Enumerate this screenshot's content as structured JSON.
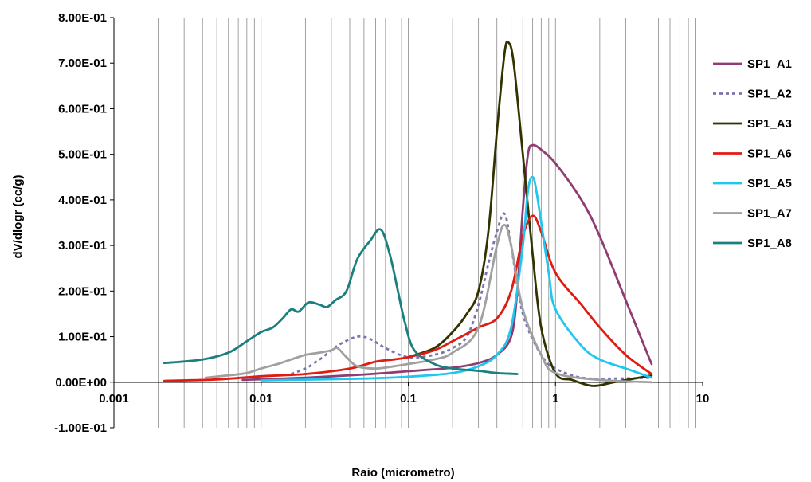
{
  "chart_data": {
    "type": "line",
    "title": "",
    "xlabel": "Raio (micrometro)",
    "ylabel": "dV/dlogr (cc/g)",
    "xscale": "log",
    "xlim": [
      0.001,
      10
    ],
    "ylim": [
      -0.1,
      0.8
    ],
    "x_ticks": [
      "0.001",
      "0.01",
      "0.1",
      "1",
      "10"
    ],
    "y_ticks": [
      "-1.00E-01",
      "0.00E+00",
      "1.00E-01",
      "2.00E-01",
      "3.00E-01",
      "4.00E-01",
      "5.00E-01",
      "6.00E-01",
      "7.00E-01",
      "8.00E-01"
    ],
    "grid": "vertical minor and major log gridlines",
    "legend_position": "right",
    "series": [
      {
        "name": "SP1_A1",
        "color": "#8E3C72",
        "dash": "solid",
        "points": [
          [
            0.0075,
            0.005
          ],
          [
            0.02,
            0.01
          ],
          [
            0.05,
            0.017
          ],
          [
            0.1,
            0.024
          ],
          [
            0.2,
            0.032
          ],
          [
            0.3,
            0.042
          ],
          [
            0.4,
            0.06
          ],
          [
            0.5,
            0.1
          ],
          [
            0.55,
            0.2
          ],
          [
            0.6,
            0.38
          ],
          [
            0.65,
            0.5
          ],
          [
            0.7,
            0.52
          ],
          [
            0.8,
            0.51
          ],
          [
            1.0,
            0.48
          ],
          [
            1.5,
            0.4
          ],
          [
            2.0,
            0.32
          ],
          [
            3.0,
            0.18
          ],
          [
            4.5,
            0.04
          ]
        ]
      },
      {
        "name": "SP1_A2",
        "color": "#7A73B0",
        "dash": "dashed",
        "points": [
          [
            0.016,
            0.018
          ],
          [
            0.02,
            0.03
          ],
          [
            0.025,
            0.05
          ],
          [
            0.03,
            0.07
          ],
          [
            0.035,
            0.085
          ],
          [
            0.045,
            0.1
          ],
          [
            0.055,
            0.095
          ],
          [
            0.07,
            0.075
          ],
          [
            0.1,
            0.055
          ],
          [
            0.15,
            0.06
          ],
          [
            0.2,
            0.075
          ],
          [
            0.25,
            0.1
          ],
          [
            0.3,
            0.17
          ],
          [
            0.35,
            0.26
          ],
          [
            0.4,
            0.33
          ],
          [
            0.45,
            0.37
          ],
          [
            0.5,
            0.3
          ],
          [
            0.6,
            0.15
          ],
          [
            0.8,
            0.06
          ],
          [
            1.0,
            0.03
          ],
          [
            1.5,
            0.01
          ],
          [
            2.5,
            0.008
          ],
          [
            4.5,
            0.01
          ]
        ]
      },
      {
        "name": "SP1_A3",
        "color": "#333300",
        "dash": "solid",
        "points": [
          [
            0.1,
            0.055
          ],
          [
            0.15,
            0.075
          ],
          [
            0.2,
            0.11
          ],
          [
            0.25,
            0.15
          ],
          [
            0.3,
            0.2
          ],
          [
            0.35,
            0.33
          ],
          [
            0.4,
            0.55
          ],
          [
            0.45,
            0.72
          ],
          [
            0.48,
            0.745
          ],
          [
            0.52,
            0.7
          ],
          [
            0.6,
            0.5
          ],
          [
            0.7,
            0.28
          ],
          [
            0.8,
            0.12
          ],
          [
            1.0,
            0.02
          ],
          [
            1.3,
            0.005
          ],
          [
            1.8,
            -0.008
          ],
          [
            2.5,
            0.0
          ],
          [
            4.5,
            0.015
          ]
        ]
      },
      {
        "name": "SP1_A6",
        "color": "#E01B12",
        "dash": "solid",
        "points": [
          [
            0.0022,
            0.003
          ],
          [
            0.005,
            0.006
          ],
          [
            0.01,
            0.013
          ],
          [
            0.02,
            0.018
          ],
          [
            0.04,
            0.03
          ],
          [
            0.06,
            0.045
          ],
          [
            0.08,
            0.05
          ],
          [
            0.1,
            0.055
          ],
          [
            0.15,
            0.07
          ],
          [
            0.2,
            0.09
          ],
          [
            0.3,
            0.12
          ],
          [
            0.4,
            0.14
          ],
          [
            0.5,
            0.2
          ],
          [
            0.6,
            0.32
          ],
          [
            0.7,
            0.365
          ],
          [
            0.8,
            0.33
          ],
          [
            1.0,
            0.24
          ],
          [
            1.5,
            0.17
          ],
          [
            2.0,
            0.12
          ],
          [
            3.0,
            0.06
          ],
          [
            4.5,
            0.018
          ]
        ]
      },
      {
        "name": "SP1_A5",
        "color": "#1FC6F0",
        "dash": "solid",
        "points": [
          [
            0.01,
            0.004
          ],
          [
            0.05,
            0.008
          ],
          [
            0.1,
            0.012
          ],
          [
            0.2,
            0.02
          ],
          [
            0.3,
            0.035
          ],
          [
            0.4,
            0.06
          ],
          [
            0.5,
            0.12
          ],
          [
            0.6,
            0.3
          ],
          [
            0.65,
            0.42
          ],
          [
            0.7,
            0.45
          ],
          [
            0.75,
            0.41
          ],
          [
            0.9,
            0.24
          ],
          [
            1.0,
            0.16
          ],
          [
            1.5,
            0.08
          ],
          [
            2.0,
            0.05
          ],
          [
            3.0,
            0.03
          ],
          [
            4.5,
            0.01
          ]
        ]
      },
      {
        "name": "SP1_A7",
        "color": "#A0A0A0",
        "dash": "solid",
        "points": [
          [
            0.0042,
            0.01
          ],
          [
            0.006,
            0.015
          ],
          [
            0.008,
            0.02
          ],
          [
            0.01,
            0.03
          ],
          [
            0.013,
            0.04
          ],
          [
            0.016,
            0.05
          ],
          [
            0.02,
            0.06
          ],
          [
            0.025,
            0.065
          ],
          [
            0.03,
            0.07
          ],
          [
            0.033,
            0.075
          ],
          [
            0.038,
            0.055
          ],
          [
            0.045,
            0.035
          ],
          [
            0.06,
            0.03
          ],
          [
            0.08,
            0.035
          ],
          [
            0.1,
            0.04
          ],
          [
            0.15,
            0.05
          ],
          [
            0.2,
            0.065
          ],
          [
            0.3,
            0.12
          ],
          [
            0.4,
            0.3
          ],
          [
            0.45,
            0.345
          ],
          [
            0.5,
            0.3
          ],
          [
            0.6,
            0.16
          ],
          [
            0.8,
            0.06
          ],
          [
            1.0,
            0.02
          ],
          [
            2.0,
            0.005
          ],
          [
            4.5,
            0.0
          ]
        ]
      },
      {
        "name": "SP1_A8",
        "color": "#1B7F7F",
        "dash": "solid",
        "points": [
          [
            0.0022,
            0.042
          ],
          [
            0.004,
            0.05
          ],
          [
            0.006,
            0.065
          ],
          [
            0.008,
            0.09
          ],
          [
            0.01,
            0.11
          ],
          [
            0.012,
            0.12
          ],
          [
            0.014,
            0.14
          ],
          [
            0.016,
            0.16
          ],
          [
            0.018,
            0.155
          ],
          [
            0.021,
            0.175
          ],
          [
            0.025,
            0.17
          ],
          [
            0.028,
            0.165
          ],
          [
            0.032,
            0.18
          ],
          [
            0.038,
            0.2
          ],
          [
            0.045,
            0.27
          ],
          [
            0.055,
            0.31
          ],
          [
            0.065,
            0.335
          ],
          [
            0.075,
            0.28
          ],
          [
            0.085,
            0.2
          ],
          [
            0.095,
            0.13
          ],
          [
            0.11,
            0.07
          ],
          [
            0.15,
            0.04
          ],
          [
            0.2,
            0.03
          ],
          [
            0.3,
            0.025
          ],
          [
            0.4,
            0.02
          ],
          [
            0.55,
            0.018
          ]
        ]
      }
    ]
  }
}
